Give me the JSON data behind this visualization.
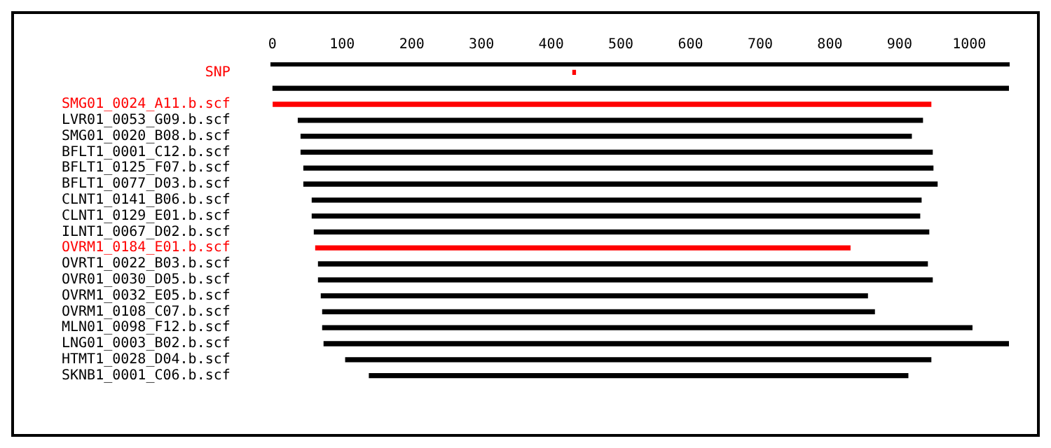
{
  "chart_data": {
    "type": "bar",
    "orientation": "horizontal",
    "categories": [
      "SNP",
      null,
      "SMG01_0024_A11.b.scf",
      "LVR01_0053_G09.b.scf",
      "SMG01_0020_B08.b.scf",
      "BFLT1_0001_C12.b.scf",
      "BFLT1_0125_F07.b.scf",
      "BFLT1_0077_D03.b.scf",
      "CLNT1_0141_B06.b.scf",
      "CLNT1_0129_E01.b.scf",
      "ILNT1_0067_D02.b.scf",
      "OVRM1_0184_E01.b.scf",
      "OVRT1_0022_B03.b.scf",
      "OVR01_0030_D05.b.scf",
      "OVRM1_0032_E05.b.scf",
      "OVRM1_0108_C07.b.scf",
      "MLN01_0098_F12.b.scf",
      "LNG01_0003_B02.b.scf",
      "HTMT1_0028_D04.b.scf",
      "SKNB1_0001_C06.b.scf"
    ],
    "base": [
      431,
      0,
      1,
      37,
      41,
      41,
      45,
      45,
      57,
      57,
      60,
      62,
      66,
      66,
      70,
      72,
      72,
      74,
      105,
      139
    ],
    "values": [
      4,
      1057,
      944,
      896,
      876,
      906,
      903,
      909,
      874,
      872,
      882,
      767,
      874,
      881,
      784,
      792,
      932,
      984,
      840,
      773
    ],
    "colors": [
      "#ff0000",
      "#000000",
      "#ff0000",
      "#000000",
      "#000000",
      "#000000",
      "#000000",
      "#000000",
      "#000000",
      "#000000",
      "#000000",
      "#ff0000",
      "#000000",
      "#000000",
      "#000000",
      "#000000",
      "#000000",
      "#000000",
      "#000000",
      "#000000"
    ],
    "xlim": [
      0,
      1057
    ],
    "xticks": [
      0,
      100,
      200,
      300,
      400,
      500,
      600,
      700,
      800,
      900,
      1000
    ],
    "grid": false
  }
}
